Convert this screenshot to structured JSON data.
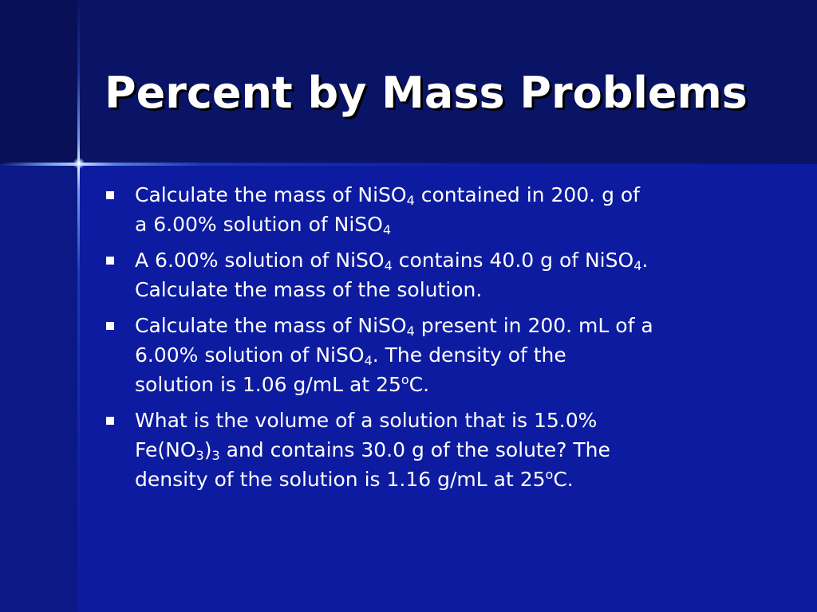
{
  "slide": {
    "title": "Percent by Mass Problems",
    "colors": {
      "background_top": "#0a1466",
      "background_main": "#0d1ba0",
      "text": "#ffffff"
    },
    "bullets": [
      {
        "lines": [
          [
            "Calculate the mass of NiSO",
            {
              "sub": "4"
            },
            " contained in 200. g of"
          ],
          [
            "a 6.00% solution of NiSO",
            {
              "sub": "4"
            }
          ]
        ]
      },
      {
        "lines": [
          [
            "A 6.00% solution of NiSO",
            {
              "sub": "4"
            },
            " contains 40.0 g of NiSO",
            {
              "sub": "4"
            },
            "."
          ],
          [
            "Calculate the mass of the solution."
          ]
        ]
      },
      {
        "lines": [
          [
            "Calculate the mass of NiSO",
            {
              "sub": "4"
            },
            " present in 200. mL of a"
          ],
          [
            "6.00% solution of NiSO",
            {
              "sub": "4"
            },
            ".  The density of the"
          ],
          [
            "solution is 1.06 g/mL at 25",
            {
              "sup": "o"
            },
            "C."
          ]
        ]
      },
      {
        "lines": [
          [
            "What is the volume of a solution that is 15.0%"
          ],
          [
            "Fe(NO",
            {
              "sub": "3"
            },
            ")",
            {
              "sub": "3"
            },
            " and contains 30.0 g of the solute?  The"
          ],
          [
            "density of the solution is 1.16 g/mL at 25",
            {
              "sup": "o"
            },
            "C."
          ]
        ]
      }
    ]
  }
}
